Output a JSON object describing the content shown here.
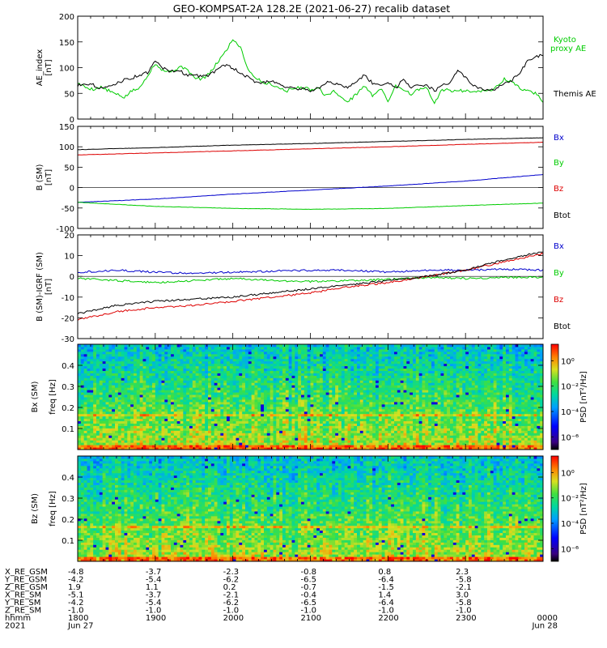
{
  "figure": {
    "title": "GEO-KOMPSAT-2A 128.2E (2021-06-27) recalib dataset"
  },
  "chart_data": [
    {
      "type": "line",
      "id": "ae",
      "ylabel": "AE_index",
      "yunit": "[nT]",
      "ylim": [
        0,
        200
      ],
      "yticks": [
        0,
        50,
        100,
        150,
        200
      ],
      "series": [
        {
          "name": "Kyoto proxy AE",
          "color": "#00cc00",
          "x": [
            1800,
            1806,
            1812,
            1818,
            1824,
            1830,
            1836,
            1842,
            1848,
            1854,
            1900,
            1906,
            1912,
            1918,
            1924,
            1930,
            1936,
            1942,
            1948,
            1954,
            2000,
            2006,
            2012,
            2018,
            2024,
            2030,
            2036,
            2042,
            2048,
            2054,
            2100,
            2106,
            2112,
            2118,
            2124,
            2130,
            2136,
            2142,
            2148,
            2154,
            2200,
            2206,
            2212,
            2218,
            2224,
            2230,
            2236,
            2242,
            2248,
            2254,
            2300,
            2306,
            2312,
            2318,
            2324,
            2330,
            2336,
            2342,
            2348,
            2354,
            2400
          ],
          "values": [
            70,
            62,
            58,
            62,
            55,
            48,
            42,
            55,
            60,
            85,
            108,
            95,
            92,
            100,
            100,
            80,
            78,
            88,
            110,
            130,
            155,
            140,
            95,
            80,
            70,
            68,
            60,
            55,
            60,
            62,
            57,
            62,
            45,
            55,
            40,
            35,
            50,
            65,
            45,
            60,
            35,
            65,
            58,
            48,
            58,
            60,
            30,
            58,
            55,
            55,
            55,
            55,
            55,
            55,
            62,
            78,
            72,
            60,
            55,
            50,
            35
          ]
        },
        {
          "name": "Themis AE",
          "color": "#000000",
          "x": [
            1800,
            1806,
            1812,
            1818,
            1824,
            1830,
            1836,
            1842,
            1848,
            1854,
            1900,
            1906,
            1912,
            1918,
            1924,
            1930,
            1936,
            1942,
            1948,
            1954,
            2000,
            2006,
            2012,
            2018,
            2024,
            2030,
            2036,
            2042,
            2048,
            2054,
            2100,
            2106,
            2112,
            2118,
            2124,
            2130,
            2136,
            2142,
            2148,
            2154,
            2200,
            2206,
            2212,
            2218,
            2224,
            2230,
            2236,
            2242,
            2248,
            2254,
            2300,
            2306,
            2312,
            2318,
            2324,
            2330,
            2336,
            2342,
            2348,
            2354,
            2400
          ],
          "values": [
            65,
            70,
            66,
            60,
            62,
            70,
            76,
            80,
            86,
            90,
            112,
            100,
            92,
            96,
            85,
            88,
            82,
            86,
            96,
            105,
            100,
            88,
            82,
            70,
            72,
            75,
            68,
            62,
            58,
            60,
            55,
            60,
            72,
            68,
            65,
            62,
            75,
            85,
            70,
            68,
            70,
            60,
            78,
            62,
            68,
            65,
            55,
            65,
            72,
            95,
            80,
            65,
            58,
            55,
            60,
            68,
            75,
            90,
            112,
            120,
            125
          ]
        }
      ]
    },
    {
      "type": "line",
      "id": "bsm",
      "ylabel": "B (SM)",
      "yunit": "[nT]",
      "ylim": [
        -100,
        150
      ],
      "yticks": [
        -100,
        -50,
        0,
        50,
        100,
        150
      ],
      "series": [
        {
          "name": "Bx",
          "color": "#0000cc",
          "x": [
            1800,
            1900,
            2000,
            2100,
            2200,
            2300,
            2400
          ],
          "values": [
            -36,
            -28,
            -16,
            -6,
            4,
            16,
            32
          ]
        },
        {
          "name": "By",
          "color": "#00cc00",
          "x": [
            1800,
            1900,
            2000,
            2100,
            2200,
            2300,
            2400
          ],
          "values": [
            -36,
            -46,
            -51,
            -53,
            -51,
            -44,
            -38
          ]
        },
        {
          "name": "Bz",
          "color": "#dd0000",
          "x": [
            1800,
            1900,
            2000,
            2100,
            2200,
            2300,
            2400
          ],
          "values": [
            80,
            85,
            90,
            95,
            100,
            106,
            111
          ]
        },
        {
          "name": "Btot",
          "color": "#000000",
          "x": [
            1800,
            1900,
            2000,
            2100,
            2200,
            2300,
            2400
          ],
          "values": [
            93,
            98,
            104,
            108,
            113,
            118,
            122
          ]
        }
      ]
    },
    {
      "type": "line",
      "id": "bdiff",
      "ylabel": "B (SM)-IGRF (SM)",
      "yunit": "[nT]",
      "ylim": [
        -30,
        20
      ],
      "yticks": [
        -30,
        -20,
        -10,
        0,
        10,
        20
      ],
      "series": [
        {
          "name": "Bx",
          "color": "#0000cc",
          "x": [
            1800,
            1830,
            1900,
            1930,
            2000,
            2030,
            2100,
            2130,
            2200,
            2230,
            2300,
            2330,
            2400
          ],
          "values": [
            2,
            3,
            2,
            1.5,
            2,
            2.5,
            3,
            3,
            2,
            3,
            3,
            3.5,
            3
          ]
        },
        {
          "name": "By",
          "color": "#00cc00",
          "x": [
            1800,
            1830,
            1900,
            1930,
            2000,
            2030,
            2100,
            2130,
            2200,
            2230,
            2300,
            2330,
            2400
          ],
          "values": [
            -1,
            -2,
            -3,
            -2,
            -1,
            -2,
            -2.5,
            -2,
            -1.5,
            -0.5,
            -1,
            -0.5,
            -0.5
          ]
        },
        {
          "name": "Bz",
          "color": "#dd0000",
          "x": [
            1800,
            1830,
            1900,
            1930,
            2000,
            2030,
            2100,
            2130,
            2200,
            2230,
            2300,
            2330,
            2400
          ],
          "values": [
            -21,
            -17,
            -15,
            -14,
            -12,
            -10,
            -8,
            -5,
            -3,
            0,
            3,
            7,
            11
          ]
        },
        {
          "name": "Btot",
          "color": "#000000",
          "x": [
            1800,
            1830,
            1900,
            1930,
            2000,
            2030,
            2100,
            2130,
            2200,
            2230,
            2300,
            2330,
            2400
          ],
          "values": [
            -18,
            -14,
            -12,
            -11,
            -10,
            -8,
            -6,
            -4,
            -2,
            0,
            3,
            8,
            12
          ]
        }
      ]
    },
    {
      "type": "heatmap",
      "id": "bx_spec",
      "ylabel": "Bx (SM)",
      "yunit": "freq [Hz]",
      "ylim": [
        0,
        0.5
      ],
      "yticks": [
        0.1,
        0.2,
        0.3,
        0.4
      ],
      "colorbar_label": "PSD [nT²/Hz]",
      "colorbar_ticks": [
        "10⁰",
        "10⁻²",
        "10⁻⁴",
        "10⁻⁶"
      ],
      "colorbar_exponents": [
        0,
        -2,
        -4,
        -6
      ],
      "colorbar_range": [
        -7,
        1.3
      ],
      "seed": 17
    },
    {
      "type": "heatmap",
      "id": "bz_spec",
      "ylabel": "Bz (SM)",
      "yunit": "freq [Hz]",
      "ylim": [
        0,
        0.5
      ],
      "yticks": [
        0.1,
        0.2,
        0.3,
        0.4
      ],
      "colorbar_label": "PSD [nT²/Hz]",
      "colorbar_ticks": [
        "10⁰",
        "10⁻²",
        "10⁻⁴",
        "10⁻⁶"
      ],
      "colorbar_exponents": [
        0,
        -2,
        -4,
        -6
      ],
      "colorbar_range": [
        -7,
        1.3
      ],
      "seed": 53
    }
  ],
  "time_axis": {
    "xlim": [
      1800,
      2400
    ],
    "ticks": [
      1800,
      1900,
      2000,
      2100,
      2200,
      2300,
      2400
    ]
  },
  "ephemeris": {
    "columns": [
      1800,
      1900,
      2000,
      2100,
      2200,
      2300
    ],
    "rows": [
      {
        "label": "X_RE_GSM",
        "values": [
          "-4.8",
          "-3.7",
          "-2.3",
          "-0.8",
          "0.8",
          "2.3"
        ]
      },
      {
        "label": "Y_RE_GSM",
        "values": [
          "-4.2",
          "-5.4",
          "-6.2",
          "-6.5",
          "-6.4",
          "-5.8"
        ]
      },
      {
        "label": "Z_RE_GSM",
        "values": [
          "1.9",
          "1.1",
          "0.2",
          "-0.7",
          "-1.5",
          "-2.1"
        ]
      },
      {
        "label": "X_RE_SM",
        "values": [
          "-5.1",
          "-3.7",
          "-2.1",
          "-0.4",
          "1.4",
          "3.0"
        ]
      },
      {
        "label": "Y_RE_SM",
        "values": [
          "-4.2",
          "-5.4",
          "-6.2",
          "-6.5",
          "-6.4",
          "-5.8"
        ]
      },
      {
        "label": "Z_RE_SM",
        "values": [
          "-1.0",
          "-1.0",
          "-1.0",
          "-1.0",
          "-1.0",
          "-1.0"
        ]
      },
      {
        "label": "hhmm",
        "values": [
          "1800",
          "1900",
          "2000",
          "2100",
          "2200",
          "2300",
          "0000"
        ]
      },
      {
        "label": "2021",
        "values": [
          "Jun 27",
          "",
          "",
          "",
          "",
          "",
          "Jun 28"
        ]
      }
    ]
  }
}
